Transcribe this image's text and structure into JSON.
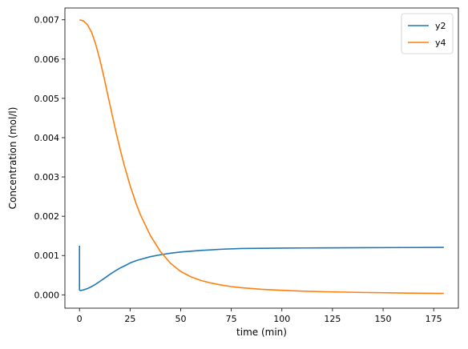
{
  "chart_data": {
    "type": "line",
    "title": "",
    "xlabel": "time (min)",
    "ylabel": "Concentration (mol/l)",
    "xlim": [
      -7.2,
      187.2
    ],
    "ylim": [
      -0.00034,
      0.0073
    ],
    "xticks": [
      0,
      25,
      50,
      75,
      100,
      125,
      150,
      175
    ],
    "xtick_labels": [
      "0",
      "25",
      "50",
      "75",
      "100",
      "125",
      "150",
      "175"
    ],
    "yticks": [
      0,
      0.001,
      0.002,
      0.003,
      0.004,
      0.005,
      0.006,
      0.007
    ],
    "ytick_labels": [
      "0.000",
      "0.001",
      "0.002",
      "0.003",
      "0.004",
      "0.005",
      "0.006",
      "0.007"
    ],
    "grid": false,
    "legend": "top-right",
    "series": [
      {
        "name": "y2",
        "color": "#1f77b4",
        "x": [
          0,
          0.01,
          0.5,
          2,
          4,
          6,
          8,
          10,
          12,
          15,
          18,
          20,
          22,
          25,
          28,
          30,
          35,
          40,
          45,
          50,
          55,
          60,
          70,
          80,
          90,
          100,
          120,
          140,
          160,
          180
        ],
        "y": [
          0.00125,
          0.00012,
          0.00011,
          0.000125,
          0.00016,
          0.00021,
          0.00027,
          0.00034,
          0.00041,
          0.00052,
          0.00062,
          0.00068,
          0.00073,
          0.00081,
          0.00087,
          0.0009,
          0.00097,
          0.00102,
          0.00106,
          0.00109,
          0.00111,
          0.00113,
          0.00116,
          0.00118,
          0.001185,
          0.00119,
          0.001195,
          0.0012,
          0.001203,
          0.001207
        ]
      },
      {
        "name": "y4",
        "color": "#ff7f0e",
        "x": [
          0,
          2,
          4,
          6,
          8,
          10,
          12,
          15,
          18,
          20,
          22,
          25,
          28,
          30,
          35,
          40,
          45,
          50,
          55,
          60,
          65,
          70,
          75,
          80,
          90,
          100,
          110,
          120,
          140,
          160,
          180
        ],
        "y": [
          0.007,
          0.00697,
          0.00687,
          0.00668,
          0.00638,
          0.006,
          0.00556,
          0.00485,
          0.00415,
          0.00372,
          0.00332,
          0.00278,
          0.00232,
          0.00205,
          0.00151,
          0.0011,
          0.0008,
          0.000595,
          0.00046,
          0.000365,
          0.0003,
          0.00025,
          0.00021,
          0.00018,
          0.00014,
          0.000115,
          9.5e-05,
          8e-05,
          6e-05,
          4.5e-05,
          3.5e-05
        ],
        "y_offset_note_removed": null
      }
    ]
  }
}
